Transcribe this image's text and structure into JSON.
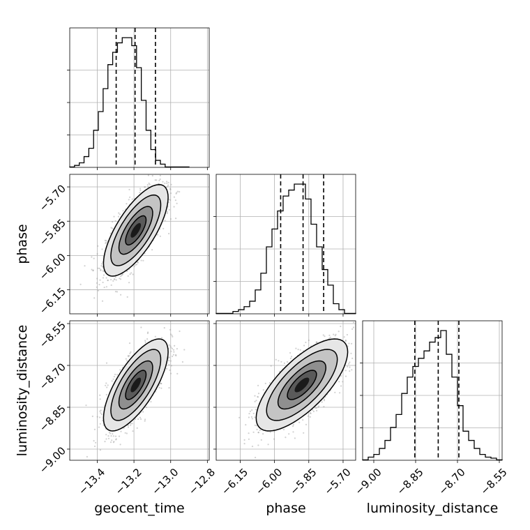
{
  "chart_data": {
    "type": "corner",
    "parameters": [
      {
        "name": "geocent_time",
        "label": "geocent_time",
        "range": [
          -13.55,
          -12.79
        ],
        "ticks": [
          -13.4,
          -13.2,
          -13.0,
          -12.8
        ],
        "tick_labels": [
          "−13.4",
          "−13.2",
          "−13.0",
          "−12.8"
        ]
      },
      {
        "name": "phase",
        "label": "phase",
        "range": [
          -6.255,
          -5.645
        ],
        "ticks": [
          -6.15,
          -6.0,
          -5.85,
          -5.7
        ],
        "tick_labels": [
          "−6.15",
          "−6.00",
          "−5.85",
          "−5.70"
        ]
      },
      {
        "name": "luminosity_distance",
        "label": "luminosity_distance",
        "range": [
          -9.04,
          -8.54
        ],
        "ticks": [
          -9.0,
          -8.85,
          -8.7,
          -8.55
        ],
        "tick_labels": [
          "−9.00",
          "−8.85",
          "−8.70",
          "−8.55"
        ]
      }
    ],
    "marginals": [
      {
        "parameter": "geocent_time",
        "quantiles": [
          -13.297,
          -13.194,
          -13.083
        ],
        "bins": [
          -13.55,
          -13.524,
          -13.498,
          -13.472,
          -13.446,
          -13.42,
          -13.394,
          -13.368,
          -13.342,
          -13.316,
          -13.29,
          -13.264,
          -13.238,
          -13.212,
          -13.186,
          -13.16,
          -13.134,
          -13.108,
          -13.082,
          -13.056,
          -13.03,
          -13.004,
          -12.978,
          -12.952,
          -12.926,
          -12.9
        ],
        "counts": [
          0.3,
          1.5,
          3.5,
          8.3,
          14.7,
          28.6,
          43.0,
          60.7,
          79.2,
          88.7,
          96.0,
          100.0,
          100.0,
          93.8,
          76.9,
          51.7,
          28.6,
          13.7,
          5.4,
          2.5,
          0.3,
          0.3,
          0.3,
          0.3,
          0.3
        ]
      },
      {
        "parameter": "phase",
        "quantiles": [
          -5.973,
          -5.875,
          -5.785
        ],
        "bins": [
          -6.255,
          -6.2306,
          -6.2062,
          -6.1818,
          -6.1574,
          -6.133,
          -6.1086,
          -6.0842,
          -6.0598,
          -6.0354,
          -6.011,
          -5.9866,
          -5.9622,
          -5.9378,
          -5.9134,
          -5.889,
          -5.8646,
          -5.8402,
          -5.8158,
          -5.7914,
          -5.767,
          -5.7426,
          -5.7182,
          -5.6938,
          -5.6694,
          -5.645
        ],
        "counts": [
          0.3,
          0.3,
          0.3,
          1.8,
          3.2,
          5.5,
          9.7,
          18.4,
          31.3,
          51.6,
          65.4,
          79.3,
          90.8,
          95.4,
          100.0,
          100.0,
          88.5,
          69.1,
          51.6,
          34.1,
          22.1,
          7.8,
          3.2,
          0.3,
          0.3
        ]
      },
      {
        "parameter": "luminosity_distance",
        "quantiles": [
          -8.853,
          -8.769,
          -8.695
        ],
        "bins": [
          -9.04,
          -9.02,
          -9.0,
          -8.98,
          -8.96,
          -8.94,
          -8.92,
          -8.9,
          -8.88,
          -8.86,
          -8.84,
          -8.82,
          -8.8,
          -8.78,
          -8.76,
          -8.74,
          -8.72,
          -8.7,
          -8.68,
          -8.66,
          -8.64,
          -8.62,
          -8.6,
          -8.58,
          -8.56,
          -8.54
        ],
        "counts": [
          0.3,
          2.4,
          4.5,
          9.1,
          15.3,
          25.3,
          35.3,
          51.5,
          64.1,
          72.3,
          78.6,
          84.3,
          91.1,
          94.6,
          100.0,
          81.7,
          64.1,
          42.1,
          22.4,
          15.3,
          9.1,
          4.5,
          2.4,
          1.6,
          0.3
        ]
      }
    ],
    "joint": [
      {
        "x": "geocent_time",
        "y": "phase",
        "center": [
          -13.19,
          -5.89
        ],
        "sigma": [
          0.08,
          0.091
        ],
        "correlation": 0.72
      },
      {
        "x": "geocent_time",
        "y": "luminosity_distance",
        "center": [
          -13.19,
          -8.77
        ],
        "sigma": [
          0.08,
          0.075
        ],
        "correlation": 0.72
      },
      {
        "x": "phase",
        "y": "luminosity_distance",
        "center": [
          -5.88,
          -8.77
        ],
        "sigma": [
          0.091,
          0.075
        ],
        "correlation": 0.72
      }
    ],
    "grid": true
  }
}
